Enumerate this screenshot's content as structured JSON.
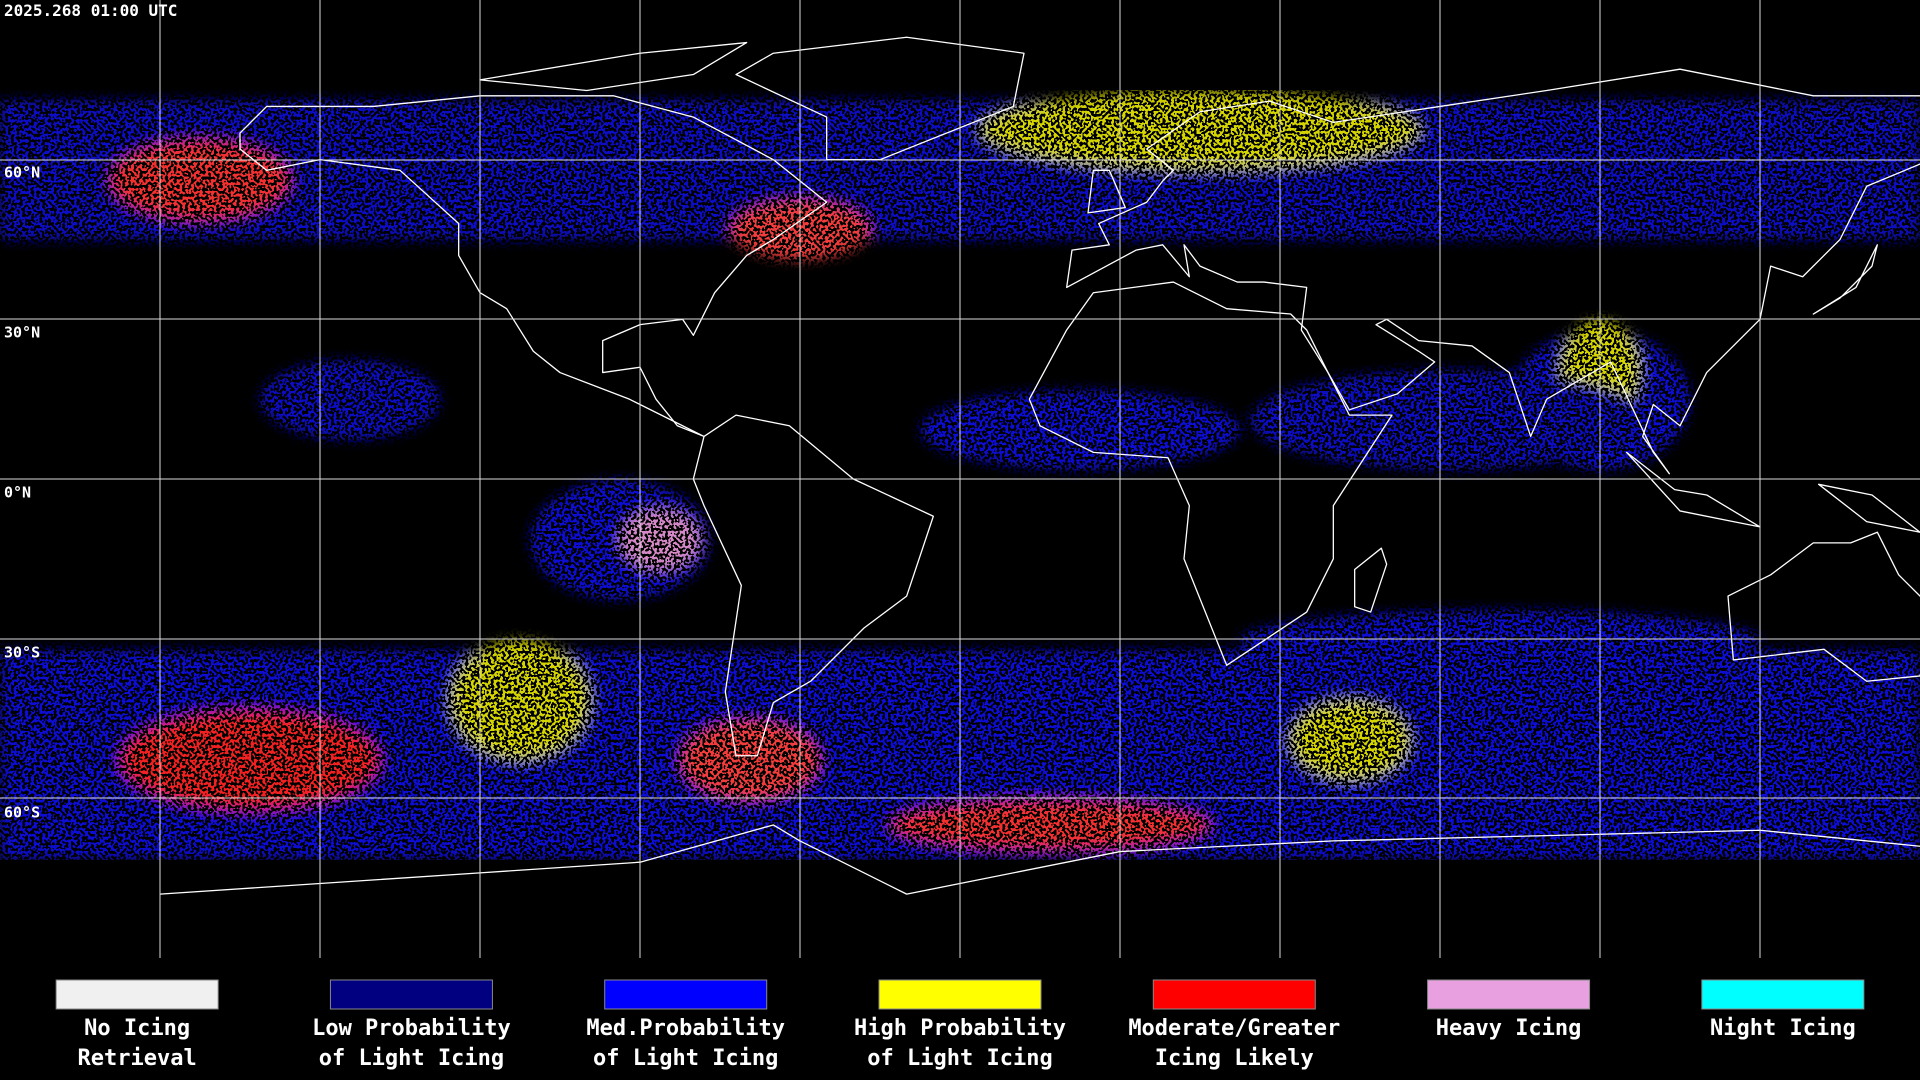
{
  "header": {
    "timestamp": "2025.268 01:00 UTC"
  },
  "map": {
    "lat_labels": [
      "60°N",
      "30°N",
      "0°N",
      "30°S",
      "60°S"
    ]
  },
  "legend": [
    {
      "lines": [
        "No Icing",
        "Retrieval"
      ],
      "color": "#f0f0f0"
    },
    {
      "lines": [
        "Low Probability",
        "of Light Icing"
      ],
      "color": "#000080"
    },
    {
      "lines": [
        "Med.Probability",
        "of Light Icing"
      ],
      "color": "#0000ff"
    },
    {
      "lines": [
        "High Probability",
        "of Light Icing"
      ],
      "color": "#ffff00"
    },
    {
      "lines": [
        "Moderate/Greater",
        "Icing Likely"
      ],
      "color": "#ff0000"
    },
    {
      "lines": [
        "Heavy Icing"
      ],
      "color": "#e8a0e0"
    },
    {
      "lines": [
        "Night Icing"
      ],
      "color": "#00ffff"
    }
  ]
}
